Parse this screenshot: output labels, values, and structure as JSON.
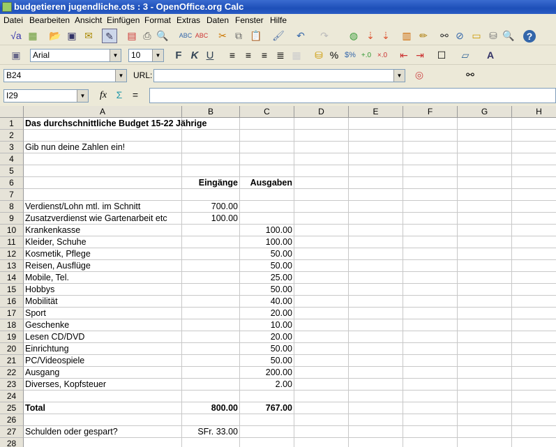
{
  "window": {
    "title": "budgetieren jugendliche.ots : 3 - OpenOffice.org Calc"
  },
  "menu": [
    "Datei",
    "Bearbeiten",
    "Ansicht",
    "Einfügen",
    "Format",
    "Extras",
    "Daten",
    "Fenster",
    "Hilfe"
  ],
  "format_toolbar": {
    "font": "Arial",
    "size": "10",
    "bold": "F",
    "italic": "K",
    "underline": "U"
  },
  "url_bar": {
    "name_box": "B24",
    "url_label": "URL:",
    "url_value": ""
  },
  "formula_bar": {
    "cell_ref": "I29",
    "formula": ""
  },
  "columns": [
    "A",
    "B",
    "C",
    "D",
    "E",
    "F",
    "G",
    "H"
  ],
  "rows": [
    {
      "n": "1",
      "a": "Das durchschnittliche Budget 15-22 Jährige",
      "b": "",
      "c": "",
      "bold": true
    },
    {
      "n": "2",
      "a": "",
      "b": "",
      "c": ""
    },
    {
      "n": "3",
      "a": "Gib nun deine Zahlen ein!",
      "b": "",
      "c": ""
    },
    {
      "n": "4",
      "a": "",
      "b": "",
      "c": ""
    },
    {
      "n": "5",
      "a": "",
      "b": "",
      "c": ""
    },
    {
      "n": "6",
      "a": "",
      "b": "Eingänge",
      "c": "Ausgaben",
      "bold": true
    },
    {
      "n": "7",
      "a": "",
      "b": "",
      "c": ""
    },
    {
      "n": "8",
      "a": "Verdienst/Lohn mtl. im Schnitt",
      "b": "700.00",
      "c": ""
    },
    {
      "n": "9",
      "a": "Zusatzverdienst wie Gartenarbeit etc",
      "b": "100.00",
      "c": ""
    },
    {
      "n": "10",
      "a": "Krankenkasse",
      "b": "",
      "c": "100.00"
    },
    {
      "n": "11",
      "a": "Kleider, Schuhe",
      "b": "",
      "c": "100.00"
    },
    {
      "n": "12",
      "a": "Kosmetik, Pflege",
      "b": "",
      "c": "50.00"
    },
    {
      "n": "13",
      "a": "Reisen, Ausflüge",
      "b": "",
      "c": "50.00"
    },
    {
      "n": "14",
      "a": "Mobile, Tel.",
      "b": "",
      "c": "25.00"
    },
    {
      "n": "15",
      "a": "Hobbys",
      "b": "",
      "c": "50.00"
    },
    {
      "n": "16",
      "a": "Mobilität",
      "b": "",
      "c": "40.00"
    },
    {
      "n": "17",
      "a": "Sport",
      "b": "",
      "c": "20.00"
    },
    {
      "n": "18",
      "a": "Geschenke",
      "b": "",
      "c": "10.00"
    },
    {
      "n": "19",
      "a": "Lesen CD/DVD",
      "b": "",
      "c": "20.00"
    },
    {
      "n": "20",
      "a": "Einrichtung",
      "b": "",
      "c": "50.00"
    },
    {
      "n": "21",
      "a": "PC/Videospiele",
      "b": "",
      "c": "50.00"
    },
    {
      "n": "22",
      "a": "Ausgang",
      "b": "",
      "c": "200.00"
    },
    {
      "n": "23",
      "a": "Diverses, Kopfsteuer",
      "b": "",
      "c": "2.00"
    },
    {
      "n": "24",
      "a": "",
      "b": "",
      "c": ""
    },
    {
      "n": "25",
      "a": "Total",
      "b": "800.00",
      "c": "767.00",
      "bold": true
    },
    {
      "n": "26",
      "a": "",
      "b": "",
      "c": ""
    },
    {
      "n": "27",
      "a": "Schulden oder gespart?",
      "b": "SFr. 33.00",
      "c": ""
    },
    {
      "n": "28",
      "a": "",
      "b": "",
      "c": ""
    }
  ]
}
